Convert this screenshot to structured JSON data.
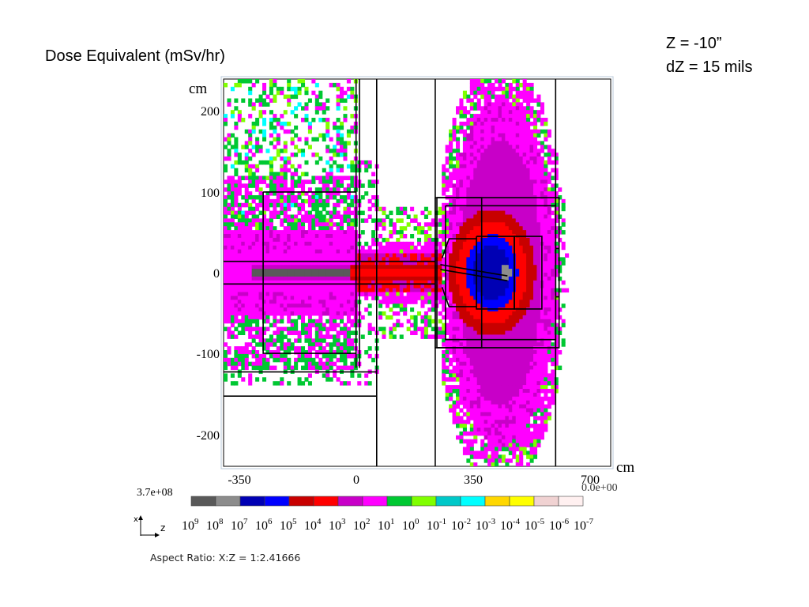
{
  "slide": {
    "title": "Dose Equivalent (mSv/hr)",
    "z_line": "Z = -10”",
    "dz_line": "dZ = 15 mils"
  },
  "chart_data": {
    "type": "heatmap",
    "title": "Dose Equivalent (mSv/hr)",
    "xlabel": "cm",
    "ylabel": "cm",
    "x_ticks": [
      -350,
      0,
      350,
      700
    ],
    "y_ticks": [
      200,
      100,
      0,
      -100,
      -200
    ],
    "xlim": [
      -385,
      740
    ],
    "ylim": [
      -240,
      240
    ],
    "grid": false,
    "colorbar": {
      "max_label": "3.7e+08",
      "min_label": "0.0e+00",
      "colors": [
        "#595959",
        "#8c8c8c",
        "#0000b4",
        "#0000ff",
        "#c80000",
        "#ff0000",
        "#c800c8",
        "#ff00ff",
        "#00c832",
        "#80ff00",
        "#00c8c8",
        "#00ffff",
        "#ffd700",
        "#ffff00",
        "#f0d2d2",
        "#fff0f0"
      ],
      "exponents": [
        "9",
        "8",
        "7",
        "6",
        "5",
        "4",
        "3",
        "2",
        "1",
        "0",
        "-1",
        "-2",
        "-3",
        "-4",
        "-5",
        "-6",
        "-7"
      ]
    },
    "axis_indicator": {
      "vertical": "x",
      "horizontal": "z"
    },
    "aspect_ratio": "Aspect Ratio: X:Z = 1:2.41666"
  }
}
